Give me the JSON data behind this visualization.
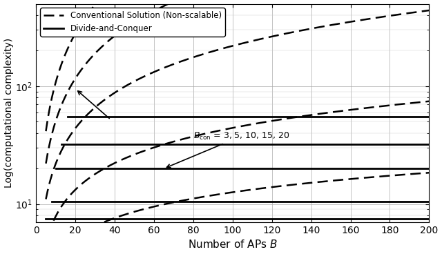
{
  "xlabel": "Number of APs $B$",
  "ylabel": "Log(computational complexity)",
  "xlim": [
    0,
    200
  ],
  "ylim_log": [
    7,
    500
  ],
  "yticks": [
    10,
    100
  ],
  "xticks": [
    0,
    20,
    40,
    60,
    80,
    100,
    120,
    140,
    160,
    180,
    200
  ],
  "B_con_values": [
    3,
    5,
    10,
    15,
    20
  ],
  "legend_dashed": "Conventional Solution (Non-scalable)",
  "legend_solid": "Divide-and-Conquer",
  "figsize": [
    6.4,
    3.68
  ],
  "dpi": 100,
  "dc_levels": [
    7.5,
    10.5,
    20.0,
    32.0,
    55.0
  ],
  "dc_start_B": [
    5,
    8,
    10,
    13,
    16
  ],
  "conv_scale": [
    1.0,
    1.4,
    2.2,
    3.2,
    4.5
  ],
  "conv_exp": [
    0.55,
    0.75,
    1.0,
    1.2,
    1.38
  ]
}
